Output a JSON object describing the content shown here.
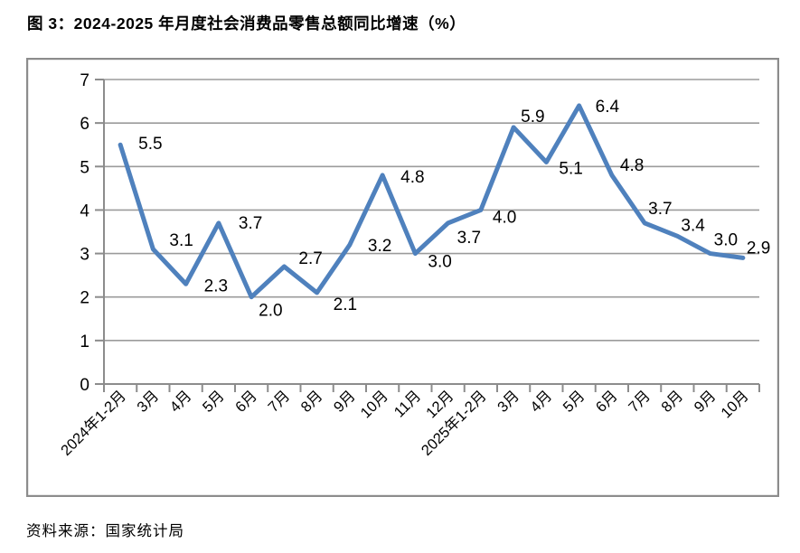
{
  "page": {
    "title": "图 3：2024-2025 年月度社会消费品零售总额同比增速（%）",
    "source_note": "资料来源：国家统计局"
  },
  "colors": {
    "line": "#4F81BD",
    "gridline": "#9B9B9B",
    "axis": "#8C8C8C",
    "frame_border": "#8C8C8C",
    "text": "#000000",
    "background": "#FFFFFF"
  },
  "chart_data": {
    "type": "line",
    "title": "图 3：2024-2025 年月度社会消费品零售总额同比增速（%）",
    "categories": [
      "2024年1-2月",
      "3月",
      "4月",
      "5月",
      "6月",
      "7月",
      "8月",
      "9月",
      "10月",
      "11月",
      "12月",
      "2025年1-2月",
      "3月",
      "4月",
      "5月",
      "6月",
      "7月",
      "8月",
      "9月",
      "10月"
    ],
    "values": [
      5.5,
      3.1,
      2.3,
      3.7,
      2.0,
      2.7,
      2.1,
      3.2,
      4.8,
      3.0,
      3.7,
      4.0,
      5.9,
      5.1,
      6.4,
      4.8,
      3.7,
      3.4,
      3.0,
      2.9
    ],
    "unit": "%",
    "xlabel": "",
    "ylabel": "",
    "ylim": [
      0,
      7
    ],
    "yticks": [
      0,
      1,
      2,
      3,
      4,
      5,
      6,
      7
    ],
    "grid": "horizontal",
    "legend": "none",
    "data_labels": true,
    "x_label_rotation_deg": 45
  }
}
